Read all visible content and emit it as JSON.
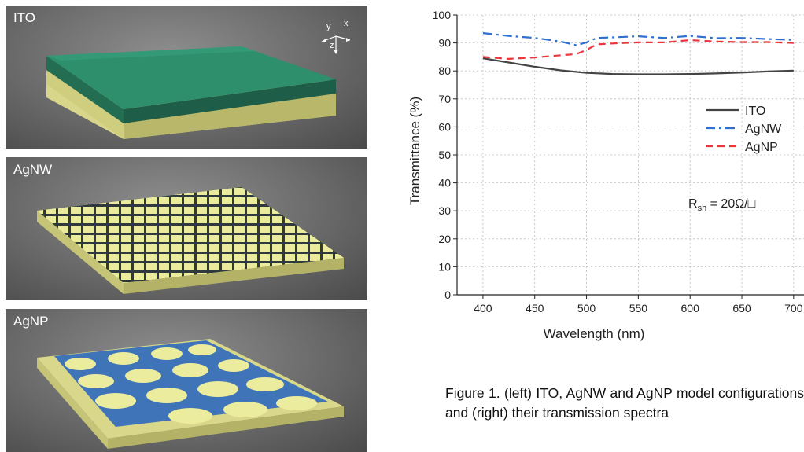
{
  "panels": {
    "ito": {
      "label": "ITO"
    },
    "agnw": {
      "label": "AgNW"
    },
    "agnp": {
      "label": "AgNP"
    },
    "axes": {
      "y": "y",
      "x": "x",
      "z": "z"
    }
  },
  "colors": {
    "ito_top": "#2e8f6d",
    "substrate": "#d8d68a",
    "nanowire": "#1f2b36",
    "nanoparticle_film": "#3f74b8",
    "hole": "#ecec9e"
  },
  "chart_data": {
    "type": "line",
    "xlabel": "Wavelength (nm)",
    "ylabel": "Transmittance (%)",
    "xlim": [
      375,
      710
    ],
    "ylim": [
      0,
      100
    ],
    "xticks": [
      400,
      450,
      500,
      550,
      600,
      650,
      700
    ],
    "yticks": [
      0,
      10,
      20,
      30,
      40,
      50,
      60,
      70,
      80,
      90,
      100
    ],
    "grid": true,
    "legend_position": "right",
    "annotation": {
      "text": "R",
      "sub": "sh",
      "rest": " = 20Ω/□"
    },
    "series": [
      {
        "name": "ITO",
        "color": "#444444",
        "dash": "solid",
        "x": [
          400,
          425,
          450,
          475,
          500,
          525,
          550,
          575,
          600,
          625,
          650,
          675,
          700
        ],
        "values": [
          84.5,
          83,
          81.5,
          80.2,
          79.3,
          78.9,
          78.8,
          78.8,
          78.9,
          79.1,
          79.4,
          79.8,
          80.1
        ]
      },
      {
        "name": "AgNW",
        "color": "#2f6fcf",
        "dash": "dashdot",
        "x": [
          400,
          425,
          450,
          475,
          490,
          500,
          510,
          525,
          550,
          575,
          600,
          625,
          650,
          675,
          700
        ],
        "values": [
          93.5,
          92.5,
          91.8,
          90.5,
          89.2,
          90.2,
          91.8,
          92,
          92.4,
          91.8,
          92.5,
          91.7,
          91.8,
          91.4,
          91.1
        ]
      },
      {
        "name": "AgNP",
        "color": "#e8383b",
        "dash": "dashed",
        "x": [
          400,
          425,
          450,
          475,
          490,
          500,
          510,
          525,
          550,
          575,
          600,
          625,
          650,
          675,
          700
        ],
        "values": [
          85,
          84.3,
          84.8,
          85.6,
          86,
          87.5,
          89.5,
          89.8,
          90.2,
          90.2,
          91,
          90.5,
          90.3,
          90.3,
          90
        ]
      }
    ]
  },
  "caption": "Figure 1. (left) ITO, AgNW and AgNP model configurations and (right) their transmission spectra"
}
